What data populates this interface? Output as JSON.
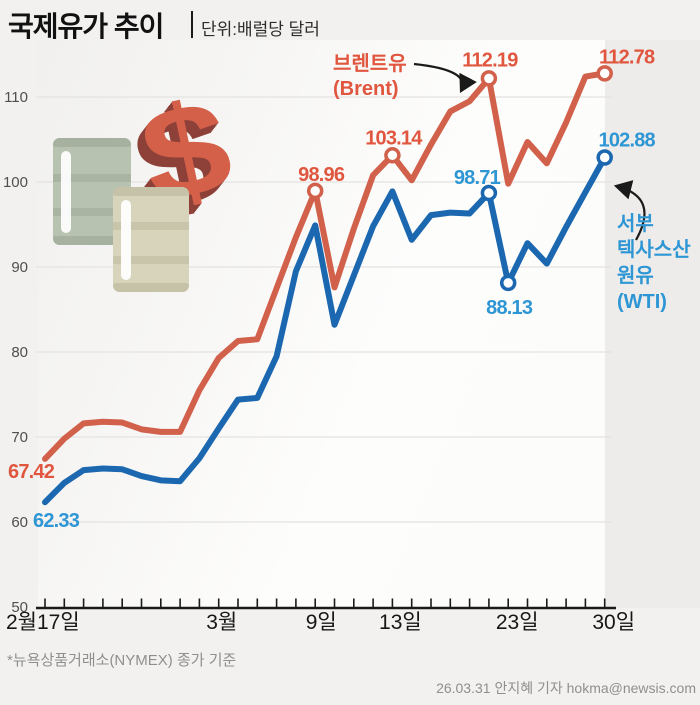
{
  "header": {
    "title": "국제유가 추이",
    "subtitle": "단위:배럴당 달러"
  },
  "footer": {
    "footnote": "*뉴욕상품거래소(NYMEX) 종가 기준",
    "credit": "26.03.31 안지혜 기자 hokma@newsis.com"
  },
  "illustration": {
    "dollar": "$"
  },
  "colors": {
    "page_bg": "#f2f1ef",
    "band_bg": "#edecea",
    "brent_line": "#d2614c",
    "brent_label": "#e0563f",
    "wti_line": "#1b67b0",
    "wti_label": "#2e96d4",
    "axis": "#1a1a1a",
    "grid": "#e4e3e1",
    "y_label": "#4f4f4f",
    "x_label": "#161616",
    "arrow": "#1a1a1a"
  },
  "chart_data": {
    "type": "line",
    "title": "국제유가 추이",
    "ylabel": "배럴당 달러",
    "ylim": [
      50,
      114
    ],
    "yticks": [
      50,
      60,
      70,
      80,
      90,
      100,
      110
    ],
    "grid": true,
    "x_point_count": 30,
    "x_tick_labels": [
      {
        "index": 0,
        "label": "2월17일"
      },
      {
        "index": 9,
        "label": "3월"
      },
      {
        "index": 14,
        "label": "9일"
      },
      {
        "index": 18,
        "label": "13일"
      },
      {
        "index": 24,
        "label": "23일"
      },
      {
        "index": 29,
        "label": "30일"
      }
    ],
    "series": [
      {
        "id": "brent",
        "name": "브렌트유 (Brent)",
        "color": "#d2614c",
        "label_color": "#e0563f",
        "values": [
          67.42,
          69.8,
          71.6,
          71.8,
          71.7,
          70.9,
          70.6,
          70.6,
          75.5,
          79.3,
          81.3,
          81.5,
          87.5,
          93.5,
          98.96,
          87.6,
          94.5,
          100.8,
          103.14,
          100.2,
          104.4,
          108.3,
          109.5,
          112.19,
          99.8,
          104.7,
          102.2,
          107.0,
          112.4,
          112.78
        ],
        "annotations": [
          {
            "index": 0,
            "label": "67.42",
            "marker": false
          },
          {
            "index": 14,
            "label": "98.96",
            "marker": true
          },
          {
            "index": 18,
            "label": "103.14",
            "marker": true
          },
          {
            "index": 23,
            "label": "112.19",
            "marker": true
          },
          {
            "index": 29,
            "label": "112.78",
            "marker": true
          }
        ]
      },
      {
        "id": "wti",
        "name": "서부 텍사스산 원유 (WTI)",
        "color": "#1b67b0",
        "label_color": "#2e96d4",
        "values": [
          62.33,
          64.6,
          66.1,
          66.3,
          66.2,
          65.4,
          64.9,
          64.8,
          67.5,
          71.0,
          74.4,
          74.6,
          79.5,
          89.5,
          94.9,
          83.2,
          89.0,
          94.8,
          98.9,
          93.2,
          96.1,
          96.4,
          96.3,
          98.71,
          88.13,
          92.8,
          90.4,
          94.7,
          98.8,
          102.88
        ],
        "annotations": [
          {
            "index": 0,
            "label": "62.33",
            "marker": false
          },
          {
            "index": 23,
            "label": "98.71",
            "marker": true
          },
          {
            "index": 24,
            "label": "88.13",
            "marker": true
          },
          {
            "index": 29,
            "label": "102.88",
            "marker": true
          }
        ]
      }
    ],
    "legend": [
      {
        "series": "brent",
        "lines": [
          "브렌트유",
          "(Brent)"
        ]
      },
      {
        "series": "wti",
        "lines": [
          "서부",
          "텍사스산",
          "원유",
          "(WTI)"
        ]
      }
    ],
    "legend_position": "annotated-with-arrows"
  }
}
